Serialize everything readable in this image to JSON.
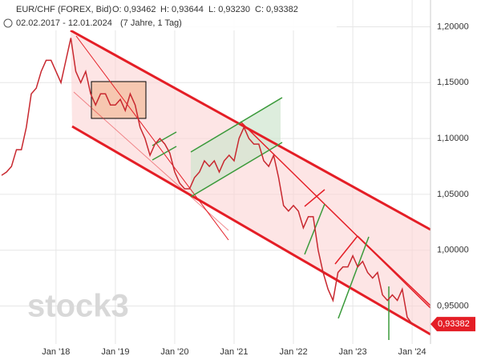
{
  "chart_data": {
    "type": "line",
    "title": "EUR/CHF (FOREX, Bid)",
    "ohlc": [
      "O: 0,93462",
      "H: 0,93644",
      "L: 0,93230",
      "C: 0,93382"
    ],
    "subtitle": "02.02.2017 - 12.01.2024",
    "period": "(7 Jahre, 1 Tag)",
    "watermark": "stock3",
    "x": [
      "2017-02",
      "2017-03",
      "2017-04",
      "2017-05",
      "2017-06",
      "2017-07",
      "2017-08",
      "2017-09",
      "2017-10",
      "2017-11",
      "2017-12",
      "2018-01",
      "2018-02",
      "2018-03",
      "2018-04",
      "2018-05",
      "2018-06",
      "2018-07",
      "2018-08",
      "2018-09",
      "2018-10",
      "2018-11",
      "2018-12",
      "2019-01",
      "2019-02",
      "2019-03",
      "2019-04",
      "2019-05",
      "2019-06",
      "2019-07",
      "2019-08",
      "2019-09",
      "2019-10",
      "2019-11",
      "2019-12",
      "2020-01",
      "2020-02",
      "2020-03",
      "2020-04",
      "2020-05",
      "2020-06",
      "2020-07",
      "2020-08",
      "2020-09",
      "2020-10",
      "2020-11",
      "2020-12",
      "2021-01",
      "2021-02",
      "2021-03",
      "2021-04",
      "2021-05",
      "2021-06",
      "2021-07",
      "2021-08",
      "2021-09",
      "2021-10",
      "2021-11",
      "2021-12",
      "2022-01",
      "2022-02",
      "2022-03",
      "2022-04",
      "2022-05",
      "2022-06",
      "2022-07",
      "2022-08",
      "2022-09",
      "2022-10",
      "2022-11",
      "2022-12",
      "2023-01",
      "2023-02",
      "2023-03",
      "2023-04",
      "2023-05",
      "2023-06",
      "2023-07",
      "2023-08",
      "2023-09",
      "2023-10",
      "2023-11",
      "2023-12",
      "2024-01"
    ],
    "series": [
      {
        "name": "EUR/CHF",
        "color": "#c8282f",
        "values": [
          1.067,
          1.07,
          1.075,
          1.09,
          1.09,
          1.11,
          1.14,
          1.145,
          1.16,
          1.17,
          1.17,
          1.16,
          1.15,
          1.17,
          1.19,
          1.16,
          1.15,
          1.16,
          1.14,
          1.13,
          1.14,
          1.14,
          1.13,
          1.13,
          1.135,
          1.125,
          1.14,
          1.13,
          1.11,
          1.1,
          1.085,
          1.095,
          1.1,
          1.095,
          1.087,
          1.07,
          1.06,
          1.055,
          1.055,
          1.065,
          1.07,
          1.08,
          1.075,
          1.08,
          1.07,
          1.08,
          1.085,
          1.08,
          1.1,
          1.11,
          1.1,
          1.095,
          1.095,
          1.08,
          1.075,
          1.085,
          1.065,
          1.04,
          1.035,
          1.04,
          1.035,
          1.02,
          1.03,
          1.03,
          1.0,
          0.98,
          0.965,
          0.955,
          0.98,
          0.985,
          0.985,
          0.995,
          0.985,
          0.99,
          0.98,
          0.975,
          0.98,
          0.96,
          0.955,
          0.96,
          0.955,
          0.965,
          0.94,
          0.93382
        ]
      }
    ],
    "last_value": {
      "value": 0.93382,
      "label": "0,93382"
    },
    "ylim": [
      0.916,
      1.224
    ],
    "yticks": [
      {
        "value": 0.95,
        "label": "0,95000"
      },
      {
        "value": 1.0,
        "label": "1,00000"
      },
      {
        "value": 1.05,
        "label": "1,05000"
      },
      {
        "value": 1.1,
        "label": "1,10000"
      },
      {
        "value": 1.15,
        "label": "1,15000"
      },
      {
        "value": 1.2,
        "label": "1,20000"
      }
    ],
    "xticks": [
      {
        "value": "2018-01",
        "label": "Jan '18"
      },
      {
        "value": "2019-01",
        "label": "Jan '19"
      },
      {
        "value": "2020-01",
        "label": "Jan '20"
      },
      {
        "value": "2021-01",
        "label": "Jan '21"
      },
      {
        "value": "2022-01",
        "label": "Jan '22"
      },
      {
        "value": "2023-01",
        "label": "Jan '23"
      },
      {
        "value": "2024-01",
        "label": "Jan '24"
      }
    ],
    "grid": true
  }
}
